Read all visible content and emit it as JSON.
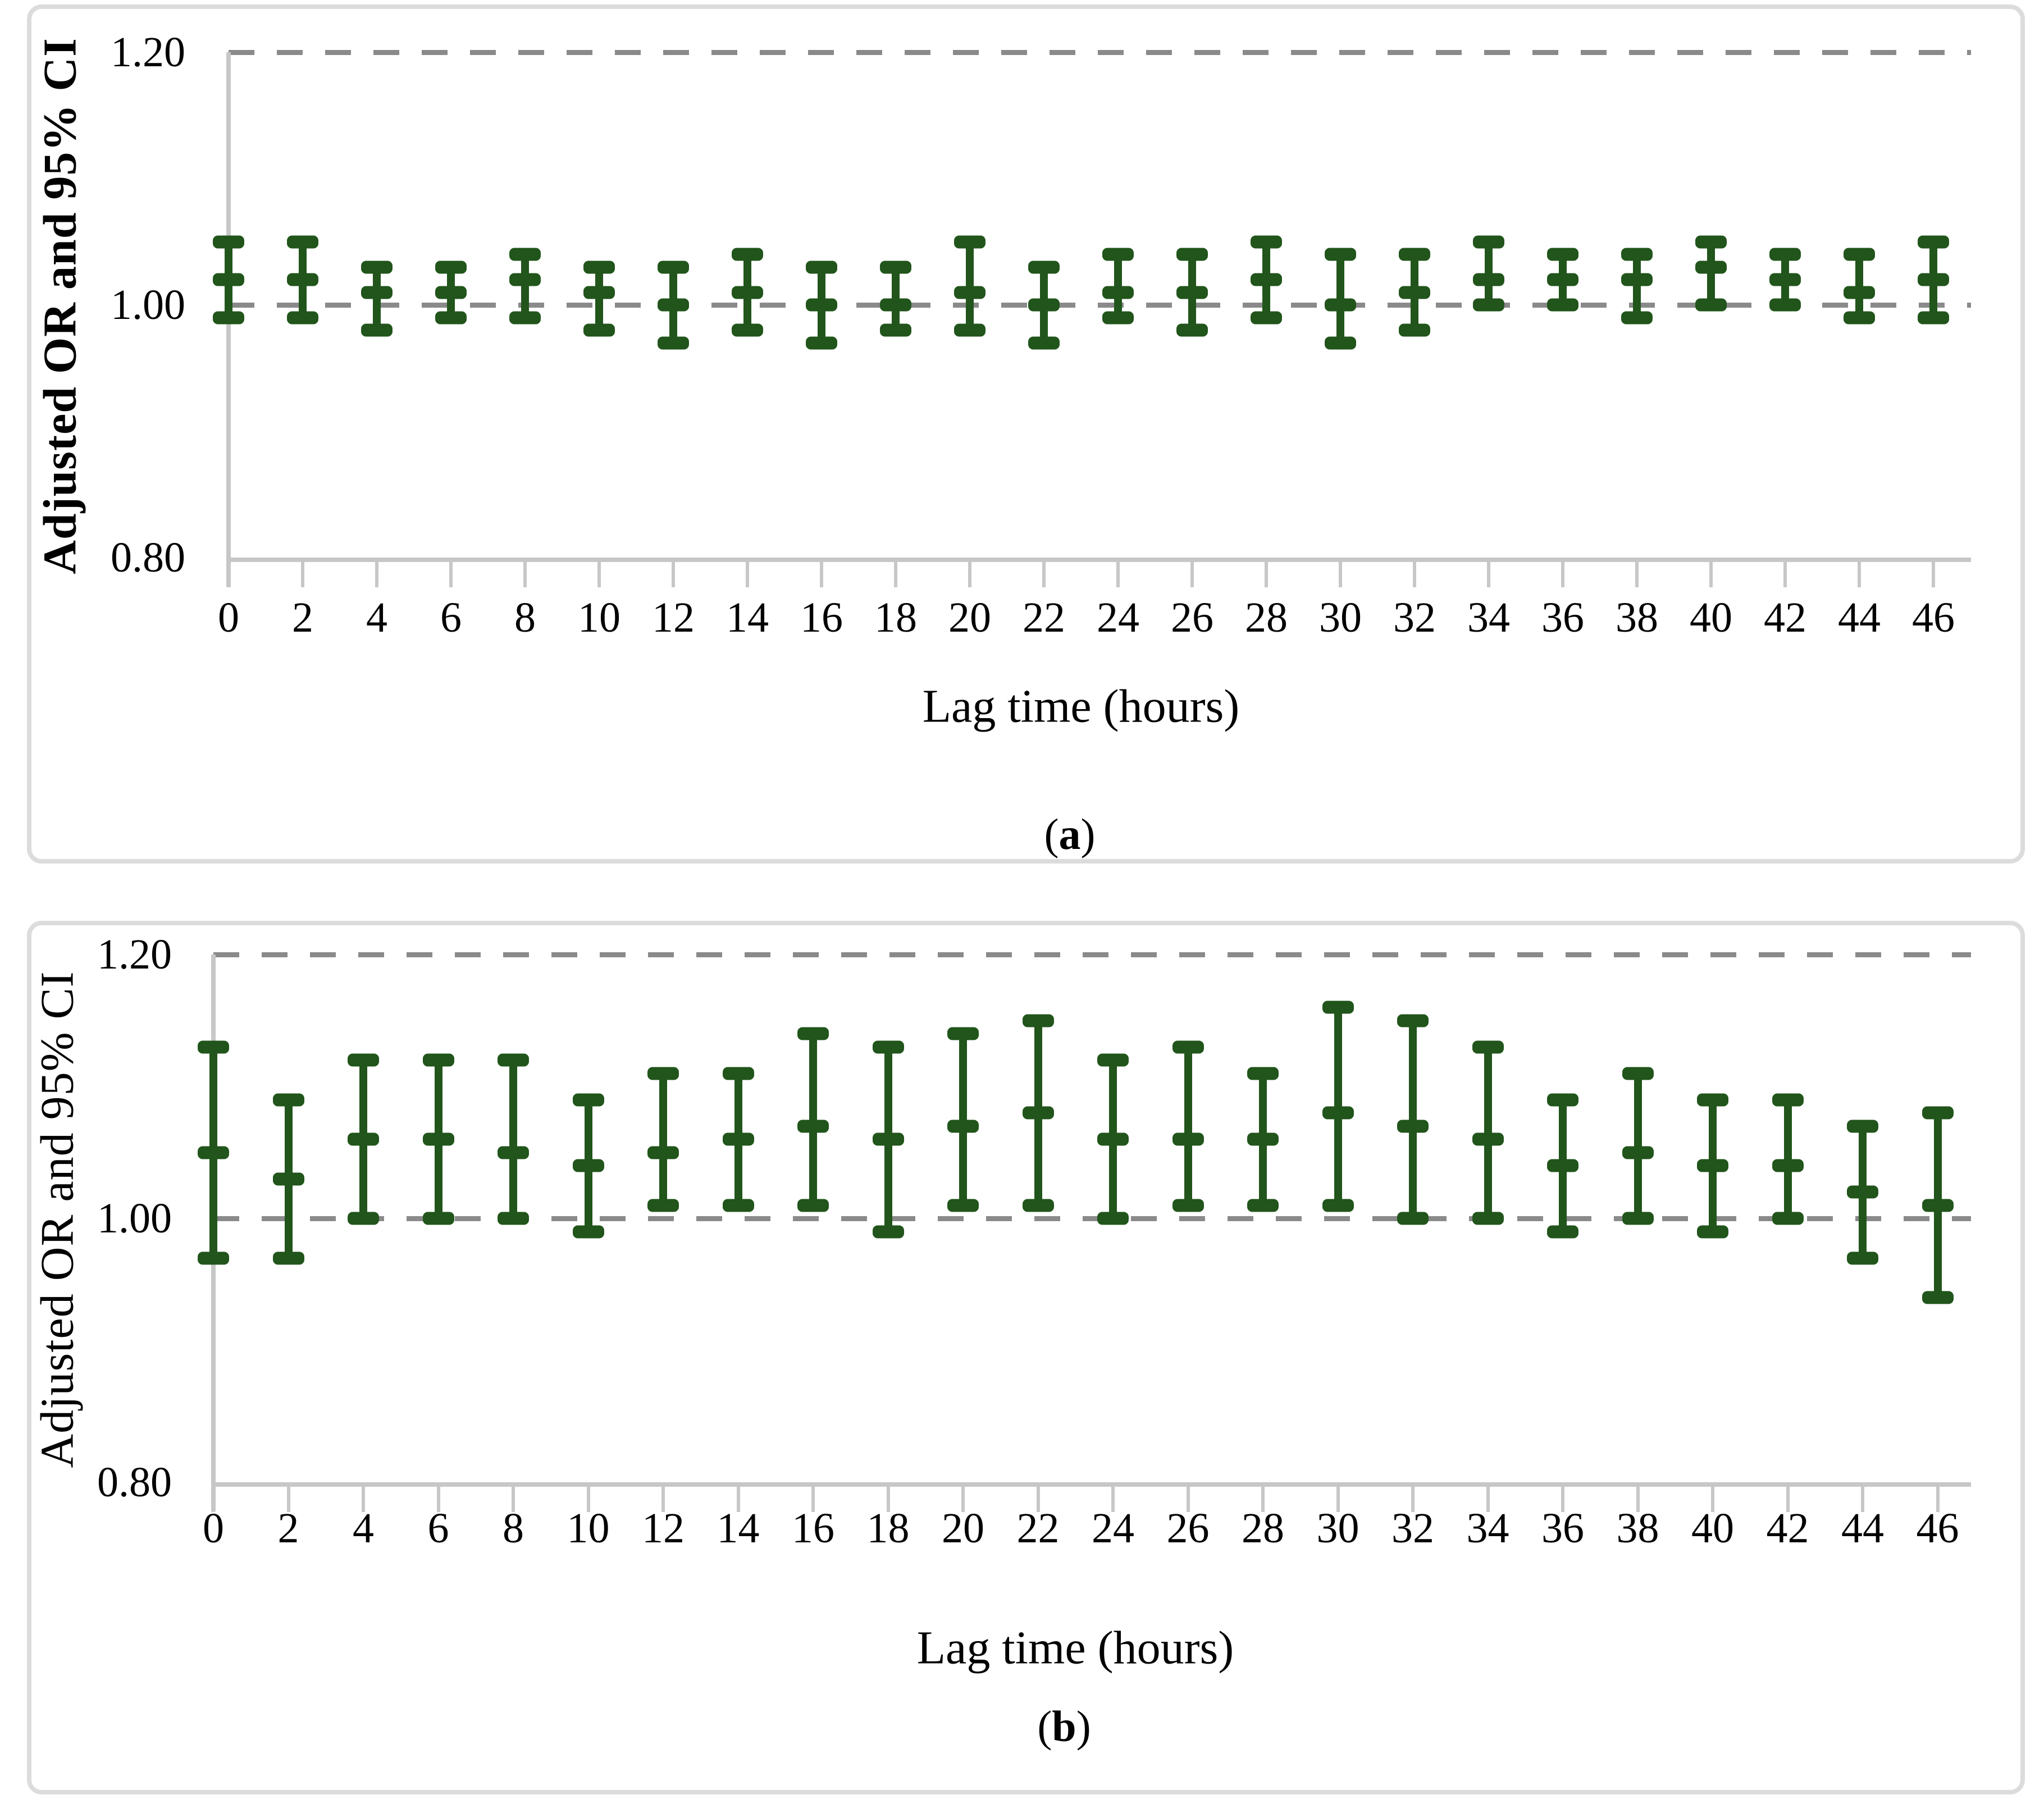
{
  "figure_title": "",
  "colors": {
    "bar_color": "#21551b",
    "gridline_color": "#8a8a8a",
    "axis_color": "#c7c7c7",
    "panel_border_color": "#dcdcdc",
    "text_color": "#000000"
  },
  "chart_data": [
    {
      "type": "errorbar",
      "panel_id": "a",
      "ylabel": "Adjusted OR and 95% CI",
      "xlabel": "Lag time (hours)",
      "caption_open": "(",
      "caption_letter": "a",
      "caption_close": ")",
      "ylim": [
        0.8,
        1.225
      ],
      "yticks": [
        1.2,
        1.0,
        0.8
      ],
      "ytick_labels": [
        "1.20",
        "1.00",
        "0.80"
      ],
      "gridline_values": [
        1.2,
        1.0
      ],
      "grid": "dashed horizontal at 1.00 and 1.20",
      "legend": "none",
      "categories": [
        "0",
        "2",
        "4",
        "6",
        "8",
        "10",
        "12",
        "14",
        "16",
        "18",
        "20",
        "22",
        "24",
        "26",
        "28",
        "30",
        "32",
        "34",
        "36",
        "38",
        "40",
        "42",
        "44",
        "46"
      ],
      "series": [
        {
          "name": "Adjusted OR",
          "values": [
            1.02,
            1.02,
            1.01,
            1.01,
            1.02,
            1.01,
            1.0,
            1.01,
            1.0,
            1.0,
            1.01,
            1.0,
            1.01,
            1.01,
            1.02,
            1.0,
            1.01,
            1.02,
            1.02,
            1.02,
            1.03,
            1.02,
            1.01,
            1.02
          ]
        },
        {
          "name": "95% CI lower",
          "values": [
            0.99,
            0.99,
            0.98,
            0.99,
            0.99,
            0.98,
            0.97,
            0.98,
            0.97,
            0.98,
            0.98,
            0.97,
            0.99,
            0.98,
            0.99,
            0.97,
            0.98,
            1.0,
            1.0,
            0.99,
            1.0,
            1.0,
            0.99,
            0.99
          ]
        },
        {
          "name": "95% CI upper",
          "values": [
            1.05,
            1.05,
            1.03,
            1.03,
            1.04,
            1.03,
            1.03,
            1.04,
            1.03,
            1.03,
            1.05,
            1.03,
            1.04,
            1.04,
            1.05,
            1.04,
            1.04,
            1.05,
            1.04,
            1.04,
            1.05,
            1.04,
            1.04,
            1.05
          ]
        }
      ]
    },
    {
      "type": "errorbar",
      "panel_id": "b",
      "ylabel": "Adjusted OR and 95% CI",
      "xlabel": "Lag time (hours)",
      "caption_open": "(",
      "caption_letter": "b",
      "caption_close": ")",
      "ylim": [
        0.8,
        1.225
      ],
      "yticks": [
        1.2,
        1.0,
        0.8
      ],
      "ytick_labels": [
        "1.20",
        "1.00",
        "0.80"
      ],
      "gridline_values": [
        1.2,
        1.0
      ],
      "grid": "dashed horizontal at 1.00 and 1.20",
      "legend": "none",
      "categories": [
        "0",
        "2",
        "4",
        "6",
        "8",
        "10",
        "12",
        "14",
        "16",
        "18",
        "20",
        "22",
        "24",
        "26",
        "28",
        "30",
        "32",
        "34",
        "36",
        "38",
        "40",
        "42",
        "44",
        "46"
      ],
      "series": [
        {
          "name": "Adjusted OR",
          "values": [
            1.05,
            1.03,
            1.06,
            1.06,
            1.05,
            1.04,
            1.05,
            1.06,
            1.07,
            1.06,
            1.07,
            1.08,
            1.06,
            1.06,
            1.06,
            1.08,
            1.07,
            1.06,
            1.04,
            1.05,
            1.04,
            1.04,
            1.02,
            1.01
          ]
        },
        {
          "name": "95% CI lower",
          "values": [
            0.97,
            0.97,
            1.0,
            1.0,
            1.0,
            0.99,
            1.01,
            1.01,
            1.01,
            0.99,
            1.01,
            1.01,
            1.0,
            1.01,
            1.01,
            1.01,
            1.0,
            1.0,
            0.99,
            1.0,
            0.99,
            1.0,
            0.97,
            0.94
          ]
        },
        {
          "name": "95% CI upper",
          "values": [
            1.13,
            1.09,
            1.12,
            1.12,
            1.12,
            1.09,
            1.11,
            1.11,
            1.14,
            1.13,
            1.14,
            1.15,
            1.12,
            1.13,
            1.11,
            1.16,
            1.15,
            1.13,
            1.09,
            1.11,
            1.09,
            1.09,
            1.07,
            1.08
          ]
        }
      ]
    }
  ]
}
